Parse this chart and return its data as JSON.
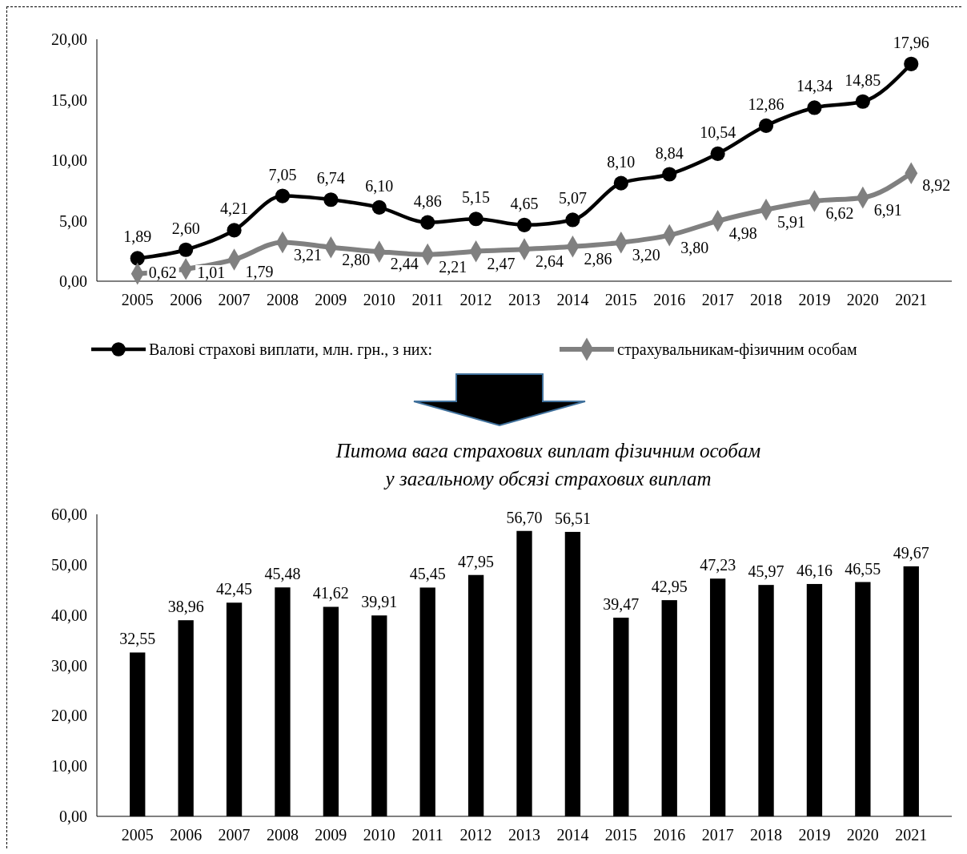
{
  "chart_data": [
    {
      "type": "line",
      "categories": [
        "2005",
        "2006",
        "2007",
        "2008",
        "2009",
        "2010",
        "2011",
        "2012",
        "2013",
        "2014",
        "2015",
        "2016",
        "2017",
        "2018",
        "2019",
        "2020",
        "2021"
      ],
      "series": [
        {
          "name": "Валові страхові виплати, млн. грн., з них:",
          "color": "#000000",
          "marker": "circle",
          "values": [
            1.89,
            2.6,
            4.21,
            7.05,
            6.74,
            6.1,
            4.86,
            5.15,
            4.65,
            5.07,
            8.1,
            8.84,
            10.54,
            12.86,
            14.34,
            14.85,
            17.96
          ],
          "value_labels": [
            "1,89",
            "2,60",
            "4,21",
            "7,05",
            "6,74",
            "6,10",
            "4,86",
            "5,15",
            "4,65",
            "5,07",
            "8,10",
            "8,84",
            "10,54",
            "12,86",
            "14,34",
            "14,85",
            "17,96"
          ]
        },
        {
          "name": "страхувальникам-фізичним особам",
          "color": "#808080",
          "marker": "diamond",
          "values": [
            0.62,
            1.01,
            1.79,
            3.21,
            2.8,
            2.44,
            2.21,
            2.47,
            2.64,
            2.86,
            3.2,
            3.8,
            4.98,
            5.91,
            6.62,
            6.91,
            8.92
          ],
          "value_labels": [
            "0,62",
            "1,01",
            "1,79",
            "3,21",
            "2,80",
            "2,44",
            "2,21",
            "2,47",
            "2,64",
            "2,86",
            "3,20",
            "3,80",
            "4,98",
            "5,91",
            "6,62",
            "6,91",
            "8,92"
          ]
        }
      ],
      "ylim": [
        0,
        20
      ],
      "yticks": [
        {
          "value": 0,
          "label": "0,00"
        },
        {
          "value": 5,
          "label": "5,00"
        },
        {
          "value": 10,
          "label": "10,00"
        },
        {
          "value": 15,
          "label": "15,00"
        },
        {
          "value": 20,
          "label": "20,00"
        }
      ],
      "legend": "bottom"
    },
    {
      "type": "bar",
      "title": "Питома вага страхових виплат фізичним особам\nу загальному обсязі страхових виплат",
      "categories": [
        "2005",
        "2006",
        "2007",
        "2008",
        "2009",
        "2010",
        "2011",
        "2012",
        "2013",
        "2014",
        "2015",
        "2016",
        "2017",
        "2018",
        "2019",
        "2020",
        "2021"
      ],
      "color": "#000000",
      "values": [
        32.55,
        38.96,
        42.45,
        45.48,
        41.62,
        39.91,
        45.45,
        47.95,
        56.7,
        56.51,
        39.47,
        42.95,
        47.23,
        45.97,
        46.16,
        46.55,
        49.67
      ],
      "value_labels": [
        "32,55",
        "38,96",
        "42,45",
        "45,48",
        "41,62",
        "39,91",
        "45,45",
        "47,95",
        "56,70",
        "56,51",
        "39,47",
        "42,95",
        "47,23",
        "45,97",
        "46,16",
        "46,55",
        "49,67"
      ],
      "ylim": [
        0,
        60
      ],
      "yticks": [
        {
          "value": 0,
          "label": "0,00"
        },
        {
          "value": 10,
          "label": "10,00"
        },
        {
          "value": 20,
          "label": "20,00"
        },
        {
          "value": 30,
          "label": "30,00"
        },
        {
          "value": 40,
          "label": "40,00"
        },
        {
          "value": 50,
          "label": "50,00"
        },
        {
          "value": 60,
          "label": "60,00"
        }
      ]
    }
  ]
}
